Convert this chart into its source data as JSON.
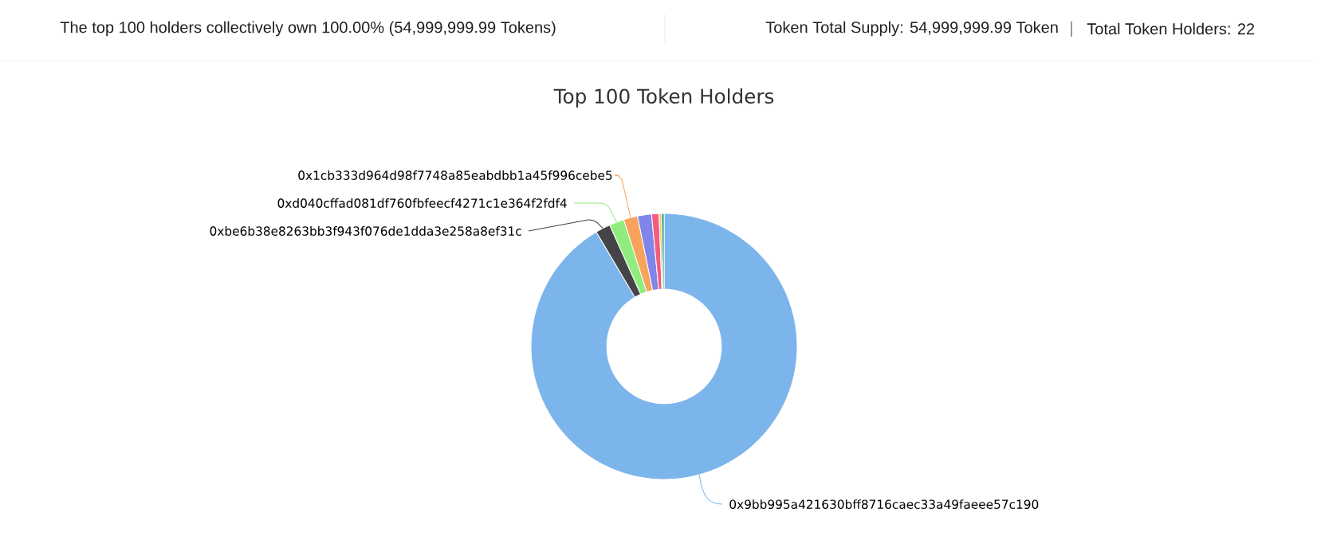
{
  "chart_data": {
    "type": "donut",
    "title": "Top 100 Token Holders",
    "categories": [
      "0x9bb995a421630bff8716caec33a49faeee57c190",
      "0xbe6b38e8263bb3f943f076de1dda3e258a8ef31c",
      "0xd040cffad081df760fbfeecf4271c1e364f2fdf4",
      "0x1cb333d964d98f7748a85eabdbb1a45f996cebe5",
      null,
      null,
      null,
      null
    ],
    "values": [
      91.5,
      1.8,
      1.8,
      1.7,
      1.7,
      0.9,
      0.3,
      0.3
    ],
    "colors": [
      "#7cb5ec",
      "#434348",
      "#90ed7d",
      "#f7a35c",
      "#8085e9",
      "#f15c80",
      "#e4d354",
      "#2b908f"
    ],
    "annotations": [
      "The top 100 holders collectively own 100.00% (54,999,999.99 Tokens)",
      "Token Total Supply: 54,999,999.99 Token",
      "Total Token Holders: 22"
    ]
  }
}
